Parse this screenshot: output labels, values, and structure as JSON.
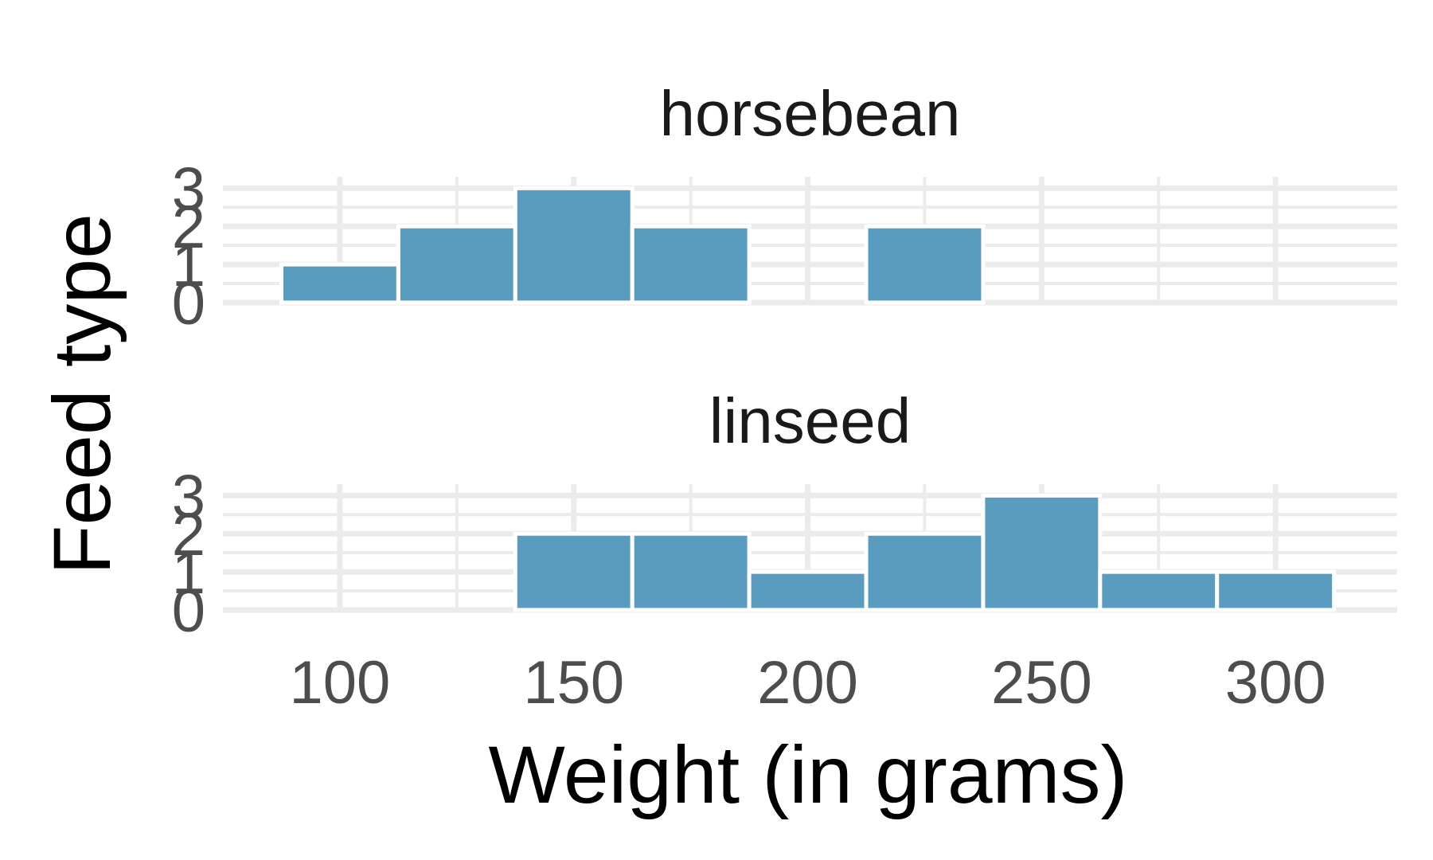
{
  "chart_data": {
    "type": "bar",
    "subtype": "faceted-histogram",
    "xlabel": "Weight (in grams)",
    "ylabel": "Feed type",
    "x_ticks": [
      100,
      150,
      200,
      250,
      300
    ],
    "y_ticks": [
      0,
      1,
      2,
      3
    ],
    "ylim": [
      0,
      3.3
    ],
    "bin_width": 25,
    "bins": [
      100,
      125,
      150,
      175,
      200,
      225,
      250,
      275,
      300
    ],
    "grid": true,
    "panel_background": "#ffffff",
    "grid_color": "#ebebeb",
    "bar_color": "#5a9cbf",
    "facets": [
      {
        "title": "horsebean",
        "values": [
          1,
          2,
          3,
          2,
          0,
          2,
          0,
          0,
          0
        ]
      },
      {
        "title": "linseed",
        "values": [
          0,
          0,
          2,
          2,
          1,
          2,
          3,
          1,
          1
        ]
      }
    ]
  }
}
